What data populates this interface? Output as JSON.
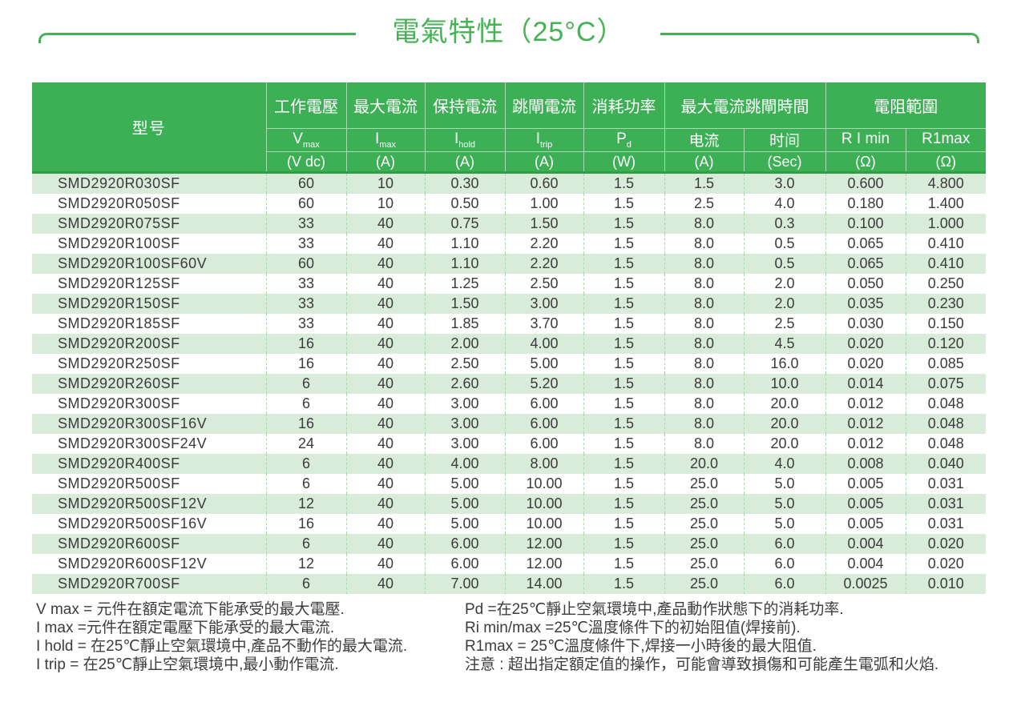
{
  "title": "電氣特性（25°C）",
  "colors": {
    "accent_green": "#3daf55",
    "title_green": "#45b354",
    "header_bottom_line": "#2f9e44",
    "row_stripe_green": "#d8ecd9",
    "divider_dash_green": "#a9d8ae",
    "text_dark": "#3b3b3b"
  },
  "table": {
    "header": {
      "model": "型号",
      "groups": [
        "工作電壓",
        "最大電流",
        "保持電流",
        "跳閘電流",
        "消耗功率",
        "最大電流跳閘時間",
        "電阻範圍"
      ],
      "symbols": [
        {
          "base": "V",
          "sub": "max"
        },
        {
          "base": "I",
          "sub": "max"
        },
        {
          "base": "I",
          "sub": "hold"
        },
        {
          "base": "I",
          "sub": "trip"
        },
        {
          "base": "P",
          "sub": "d"
        },
        {
          "base": "电流",
          "sub": ""
        },
        {
          "base": "时间",
          "sub": ""
        },
        {
          "base": "R I min",
          "sub": ""
        },
        {
          "base": "R1max",
          "sub": ""
        }
      ],
      "units": [
        "(V dc)",
        "(A)",
        "(A)",
        "(A)",
        "(W)",
        "(A)",
        "(Sec)",
        "(Ω)",
        "(Ω)"
      ]
    },
    "rows": [
      [
        "SMD2920R030SF",
        "60",
        "10",
        "0.30",
        "0.60",
        "1.5",
        "1.5",
        "3.0",
        "0.600",
        "4.800"
      ],
      [
        "SMD2920R050SF",
        "60",
        "10",
        "0.50",
        "1.00",
        "1.5",
        "2.5",
        "4.0",
        "0.180",
        "1.400"
      ],
      [
        "SMD2920R075SF",
        "33",
        "40",
        "0.75",
        "1.50",
        "1.5",
        "8.0",
        "0.3",
        "0.100",
        "1.000"
      ],
      [
        "SMD2920R100SF",
        "33",
        "40",
        "1.10",
        "2.20",
        "1.5",
        "8.0",
        "0.5",
        "0.065",
        "0.410"
      ],
      [
        "SMD2920R100SF60V",
        "60",
        "40",
        "1.10",
        "2.20",
        "1.5",
        "8.0",
        "0.5",
        "0.065",
        "0.410"
      ],
      [
        "SMD2920R125SF",
        "33",
        "40",
        "1.25",
        "2.50",
        "1.5",
        "8.0",
        "2.0",
        "0.050",
        "0.250"
      ],
      [
        "SMD2920R150SF",
        "33",
        "40",
        "1.50",
        "3.00",
        "1.5",
        "8.0",
        "2.0",
        "0.035",
        "0.230"
      ],
      [
        "SMD2920R185SF",
        "33",
        "40",
        "1.85",
        "3.70",
        "1.5",
        "8.0",
        "2.5",
        "0.030",
        "0.150"
      ],
      [
        "SMD2920R200SF",
        "16",
        "40",
        "2.00",
        "4.00",
        "1.5",
        "8.0",
        "4.5",
        "0.020",
        "0.120"
      ],
      [
        "SMD2920R250SF",
        "16",
        "40",
        "2.50",
        "5.00",
        "1.5",
        "8.0",
        "16.0",
        "0.020",
        "0.085"
      ],
      [
        "SMD2920R260SF",
        "6",
        "40",
        "2.60",
        "5.20",
        "1.5",
        "8.0",
        "10.0",
        "0.014",
        "0.075"
      ],
      [
        "SMD2920R300SF",
        "6",
        "40",
        "3.00",
        "6.00",
        "1.5",
        "8.0",
        "20.0",
        "0.012",
        "0.048"
      ],
      [
        "SMD2920R300SF16V",
        "16",
        "40",
        "3.00",
        "6.00",
        "1.5",
        "8.0",
        "20.0",
        "0.012",
        "0.048"
      ],
      [
        "SMD2920R300SF24V",
        "24",
        "40",
        "3.00",
        "6.00",
        "1.5",
        "8.0",
        "20.0",
        "0.012",
        "0.048"
      ],
      [
        "SMD2920R400SF",
        "6",
        "40",
        "4.00",
        "8.00",
        "1.5",
        "20.0",
        "4.0",
        "0.008",
        "0.040"
      ],
      [
        "SMD2920R500SF",
        "6",
        "40",
        "5.00",
        "10.00",
        "1.5",
        "25.0",
        "5.0",
        "0.005",
        "0.031"
      ],
      [
        "SMD2920R500SF12V",
        "12",
        "40",
        "5.00",
        "10.00",
        "1.5",
        "25.0",
        "5.0",
        "0.005",
        "0.031"
      ],
      [
        "SMD2920R500SF16V",
        "16",
        "40",
        "5.00",
        "10.00",
        "1.5",
        "25.0",
        "5.0",
        "0.005",
        "0.031"
      ],
      [
        "SMD2920R600SF",
        "6",
        "40",
        "6.00",
        "12.00",
        "1.5",
        "25.0",
        "6.0",
        "0.004",
        "0.020"
      ],
      [
        "SMD2920R600SF12V",
        "12",
        "40",
        "6.00",
        "12.00",
        "1.5",
        "25.0",
        "6.0",
        "0.004",
        "0.020"
      ],
      [
        "SMD2920R700SF",
        "6",
        "40",
        "7.00",
        "14.00",
        "1.5",
        "25.0",
        "6.0",
        "0.0025",
        "0.010"
      ]
    ]
  },
  "notes": {
    "left": [
      "V max = 元件在額定電流下能承受的最大電壓.",
      "I max =元件在額定電壓下能承受的最大電流.",
      "I hold = 在25℃靜止空氣環境中,產品不動作的最大電流.",
      "I trip = 在25℃靜止空氣環境中,最小動作電流."
    ],
    "right": [
      "Pd =在25℃靜止空氣環境中,產品動作狀態下的消耗功率.",
      "Ri min/max  =25℃溫度條件下的初始阻值(焊接前).",
      "R1max  = 25℃溫度條件下,焊接一小時後的最大阻值.",
      "注意 : 超出指定額定值的操作，可能會導致損傷和可能產生電弧和火焰."
    ]
  }
}
